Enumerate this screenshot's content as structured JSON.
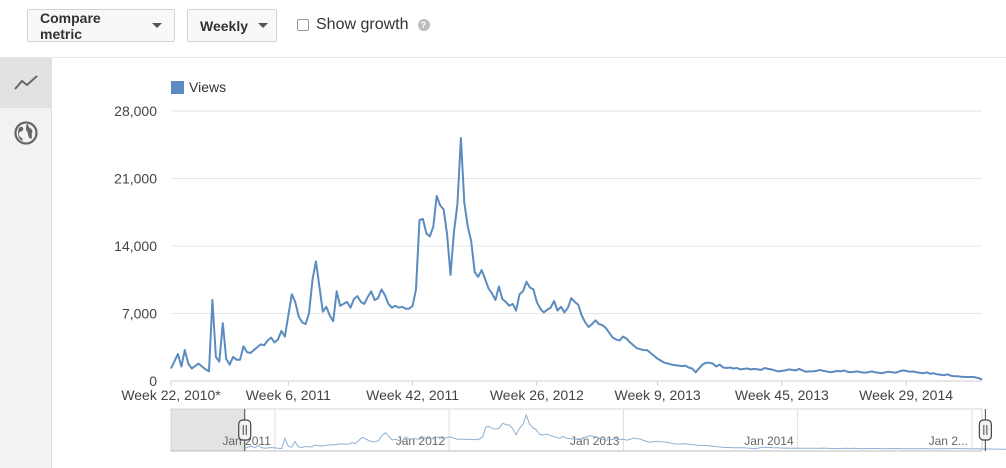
{
  "toolbar": {
    "compare_metric_label": "Compare metric",
    "period_label": "Weekly",
    "show_growth_label": "Show growth",
    "help_glyph": "?"
  },
  "sidebar": {
    "items": [
      {
        "icon": "line-chart-icon",
        "active": true
      },
      {
        "icon": "globe-icon",
        "active": false
      }
    ]
  },
  "colors": {
    "series": "#5b8bbf",
    "navigator_line": "#8fb0d4",
    "grid": "#e6e6e6"
  },
  "chart_data": {
    "type": "line",
    "legend": "Views",
    "legend_position": "top-left",
    "grid": true,
    "ylim": [
      0,
      28000
    ],
    "yticks": [
      0,
      7000,
      14000,
      21000,
      28000
    ],
    "ytick_labels": [
      "0",
      "7,000",
      "14,000",
      "21,000",
      "28,000"
    ],
    "x_count": 236,
    "xticks": [
      {
        "index": 0,
        "label": "Week 22, 2010*"
      },
      {
        "index": 34,
        "label": "Week 6, 2011"
      },
      {
        "index": 70,
        "label": "Week 42, 2011"
      },
      {
        "index": 106,
        "label": "Week 26, 2012"
      },
      {
        "index": 141,
        "label": "Week 9, 2013"
      },
      {
        "index": 177,
        "label": "Week 45, 2013"
      },
      {
        "index": 213,
        "label": "Week 29, 2014"
      }
    ],
    "series": [
      {
        "name": "Views",
        "points": [
          [
            0,
            1300
          ],
          [
            2,
            2800
          ],
          [
            3,
            1500
          ],
          [
            4,
            3200
          ],
          [
            5,
            1800
          ],
          [
            6,
            1300
          ],
          [
            8,
            1800
          ],
          [
            10,
            1200
          ],
          [
            11,
            1000
          ],
          [
            12,
            8400
          ],
          [
            13,
            2500
          ],
          [
            14,
            2000
          ],
          [
            15,
            6000
          ],
          [
            16,
            2300
          ],
          [
            17,
            1700
          ],
          [
            18,
            2500
          ],
          [
            19,
            2200
          ],
          [
            20,
            2200
          ],
          [
            21,
            3600
          ],
          [
            22,
            3000
          ],
          [
            23,
            2900
          ],
          [
            24,
            3200
          ],
          [
            26,
            3800
          ],
          [
            27,
            3700
          ],
          [
            28,
            4200
          ],
          [
            29,
            4500
          ],
          [
            30,
            4000
          ],
          [
            31,
            4300
          ],
          [
            32,
            5200
          ],
          [
            33,
            4600
          ],
          [
            34,
            6800
          ],
          [
            35,
            9000
          ],
          [
            36,
            8200
          ],
          [
            37,
            6700
          ],
          [
            38,
            6100
          ],
          [
            39,
            5900
          ],
          [
            40,
            7000
          ],
          [
            41,
            10500
          ],
          [
            42,
            12400
          ],
          [
            43,
            9800
          ],
          [
            44,
            7200
          ],
          [
            45,
            7700
          ],
          [
            46,
            6800
          ],
          [
            47,
            6200
          ],
          [
            48,
            9300
          ],
          [
            49,
            7800
          ],
          [
            50,
            8000
          ],
          [
            51,
            8200
          ],
          [
            52,
            7600
          ],
          [
            53,
            8500
          ],
          [
            54,
            8800
          ],
          [
            55,
            8200
          ],
          [
            56,
            8000
          ],
          [
            57,
            8700
          ],
          [
            58,
            9300
          ],
          [
            59,
            8400
          ],
          [
            60,
            8600
          ],
          [
            61,
            9500
          ],
          [
            62,
            8900
          ],
          [
            63,
            8000
          ],
          [
            64,
            7600
          ],
          [
            65,
            7800
          ],
          [
            66,
            7600
          ],
          [
            67,
            7700
          ],
          [
            68,
            7500
          ],
          [
            69,
            7500
          ],
          [
            70,
            7800
          ],
          [
            71,
            9500
          ],
          [
            72,
            16700
          ],
          [
            73,
            16800
          ],
          [
            74,
            15300
          ],
          [
            75,
            15000
          ],
          [
            76,
            16000
          ],
          [
            77,
            19200
          ],
          [
            78,
            18200
          ],
          [
            79,
            17800
          ],
          [
            80,
            15200
          ],
          [
            81,
            11000
          ],
          [
            82,
            15500
          ],
          [
            83,
            18300
          ],
          [
            84,
            25200
          ],
          [
            85,
            18500
          ],
          [
            86,
            16000
          ],
          [
            87,
            14500
          ],
          [
            88,
            11300
          ],
          [
            89,
            10800
          ],
          [
            90,
            11500
          ],
          [
            91,
            10600
          ],
          [
            92,
            9600
          ],
          [
            93,
            9100
          ],
          [
            94,
            8400
          ],
          [
            95,
            9800
          ],
          [
            96,
            8500
          ],
          [
            97,
            8200
          ],
          [
            98,
            7800
          ],
          [
            99,
            8000
          ],
          [
            100,
            7300
          ],
          [
            101,
            9000
          ],
          [
            102,
            9300
          ],
          [
            103,
            10300
          ],
          [
            104,
            9700
          ],
          [
            105,
            9500
          ],
          [
            106,
            8200
          ],
          [
            107,
            7500
          ],
          [
            108,
            7100
          ],
          [
            109,
            7400
          ],
          [
            110,
            7600
          ],
          [
            111,
            8300
          ],
          [
            112,
            7300
          ],
          [
            113,
            7700
          ],
          [
            114,
            7100
          ],
          [
            115,
            7600
          ],
          [
            116,
            8600
          ],
          [
            117,
            8200
          ],
          [
            118,
            7900
          ],
          [
            119,
            6800
          ],
          [
            120,
            6100
          ],
          [
            121,
            5600
          ],
          [
            122,
            5900
          ],
          [
            123,
            6300
          ],
          [
            124,
            5900
          ],
          [
            125,
            5800
          ],
          [
            126,
            5500
          ],
          [
            127,
            5000
          ],
          [
            128,
            4500
          ],
          [
            129,
            4300
          ],
          [
            130,
            4200
          ],
          [
            131,
            4600
          ],
          [
            132,
            4400
          ],
          [
            133,
            4000
          ],
          [
            134,
            3700
          ],
          [
            135,
            3400
          ],
          [
            136,
            3300
          ],
          [
            137,
            3200
          ],
          [
            138,
            3200
          ],
          [
            139,
            2900
          ],
          [
            140,
            2600
          ],
          [
            141,
            2300
          ],
          [
            142,
            2100
          ],
          [
            143,
            1900
          ],
          [
            144,
            1800
          ],
          [
            145,
            1700
          ],
          [
            146,
            1650
          ],
          [
            147,
            1600
          ],
          [
            148,
            1550
          ],
          [
            149,
            1600
          ],
          [
            150,
            1400
          ],
          [
            151,
            1300
          ],
          [
            152,
            900
          ],
          [
            153,
            1300
          ],
          [
            154,
            1700
          ],
          [
            155,
            1900
          ],
          [
            156,
            1900
          ],
          [
            157,
            1800
          ],
          [
            158,
            1500
          ],
          [
            159,
            1700
          ],
          [
            160,
            1400
          ],
          [
            161,
            1350
          ],
          [
            162,
            1400
          ],
          [
            163,
            1300
          ],
          [
            164,
            1350
          ],
          [
            165,
            1200
          ],
          [
            166,
            1250
          ],
          [
            167,
            1300
          ],
          [
            168,
            1200
          ],
          [
            169,
            1250
          ],
          [
            170,
            1200
          ],
          [
            171,
            1150
          ],
          [
            172,
            1350
          ],
          [
            173,
            1250
          ],
          [
            174,
            1200
          ],
          [
            175,
            1100
          ],
          [
            176,
            1000
          ],
          [
            177,
            1050
          ],
          [
            178,
            1100
          ],
          [
            179,
            1200
          ],
          [
            180,
            1150
          ],
          [
            181,
            1100
          ],
          [
            182,
            1250
          ],
          [
            183,
            1100
          ],
          [
            184,
            950
          ],
          [
            185,
            1000
          ],
          [
            186,
            1000
          ],
          [
            187,
            1050
          ],
          [
            188,
            1150
          ],
          [
            189,
            1050
          ],
          [
            190,
            1000
          ],
          [
            191,
            900
          ],
          [
            192,
            950
          ],
          [
            193,
            1050
          ],
          [
            194,
            1000
          ],
          [
            195,
            1100
          ],
          [
            196,
            950
          ],
          [
            197,
            900
          ],
          [
            198,
            950
          ],
          [
            199,
            1000
          ],
          [
            200,
            900
          ],
          [
            201,
            850
          ],
          [
            202,
            900
          ],
          [
            203,
            1000
          ],
          [
            204,
            900
          ],
          [
            205,
            850
          ],
          [
            206,
            800
          ],
          [
            207,
            900
          ],
          [
            208,
            950
          ],
          [
            209,
            900
          ],
          [
            210,
            850
          ],
          [
            211,
            1000
          ],
          [
            212,
            1100
          ],
          [
            213,
            1050
          ],
          [
            214,
            950
          ],
          [
            215,
            1000
          ],
          [
            216,
            900
          ],
          [
            217,
            850
          ],
          [
            218,
            800
          ],
          [
            219,
            900
          ],
          [
            220,
            750
          ],
          [
            221,
            800
          ],
          [
            222,
            700
          ],
          [
            223,
            650
          ],
          [
            224,
            600
          ],
          [
            225,
            700
          ],
          [
            226,
            550
          ],
          [
            227,
            500
          ],
          [
            228,
            500
          ],
          [
            229,
            450
          ],
          [
            230,
            420
          ],
          [
            231,
            400
          ],
          [
            232,
            420
          ],
          [
            233,
            380
          ],
          [
            234,
            300
          ],
          [
            235,
            150
          ]
        ]
      }
    ],
    "navigator": {
      "labels": [
        "Jan 2011",
        "Jan 2012",
        "Jan 2013",
        "Jan 2014",
        "Jan 2..."
      ],
      "label_indices": [
        31,
        83,
        135,
        187,
        239
      ],
      "total_count": 243,
      "selected_range": [
        22,
        243
      ]
    }
  }
}
